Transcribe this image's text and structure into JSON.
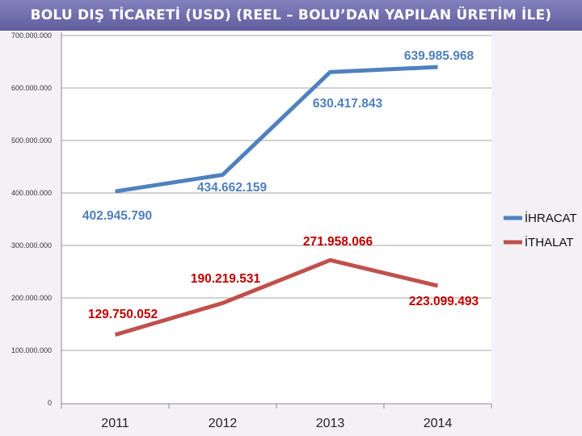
{
  "header": {
    "title": "BOLU DIŞ TİCARETİ (USD) (REEL – BOLU’DAN YAPILAN ÜRETİM İLE)"
  },
  "chart_data": {
    "type": "line",
    "title": "BOLU DIŞ TİCARETİ (USD) (REEL – BOLU’DAN YAPILAN ÜRETİM İLE)",
    "categories": [
      "2011",
      "2012",
      "2013",
      "2014"
    ],
    "ylim": [
      0,
      700000000
    ],
    "y_ticks": [
      0,
      100000000,
      200000000,
      300000000,
      400000000,
      500000000,
      600000000,
      700000000
    ],
    "y_tick_labels": [
      "0",
      "100.000.000",
      "200.000.000",
      "300.000.000",
      "400.000.000",
      "500.000.000",
      "600.000.000",
      "700.000.000"
    ],
    "grid": true,
    "legend_position": "right",
    "series": [
      {
        "name": "İHRACAT",
        "color": "#4f81bd",
        "values": [
          402945790,
          434662159,
          630417843,
          639985968
        ],
        "labels": [
          "402.945.790",
          "434.662.159",
          "630.417.843",
          "639.985.968"
        ]
      },
      {
        "name": "İTHALAT",
        "color": "#c0504d",
        "values": [
          129750052,
          190219531,
          271958066,
          223099493
        ],
        "labels": [
          "129.750.052",
          "190.219.531",
          "271.958.066",
          "223.099.493"
        ],
        "label_color": "#c00000"
      }
    ]
  }
}
